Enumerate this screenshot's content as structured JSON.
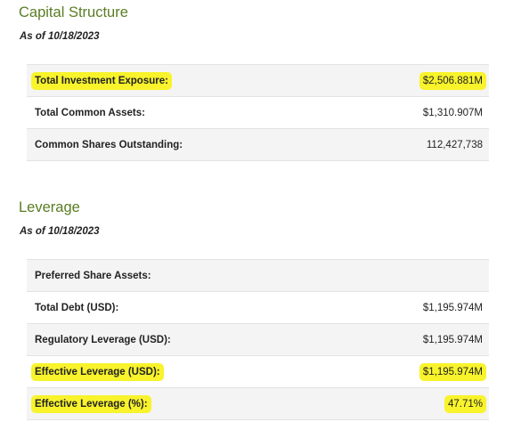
{
  "highlight_color": "#f8f32b",
  "title_color": "#5a7d23",
  "capital_structure": {
    "title": "Capital Structure",
    "as_of": "As of 10/18/2023",
    "rows": [
      {
        "label": "Total Investment Exposure:",
        "value": "$2,506.881M",
        "highlighted": true
      },
      {
        "label": "Total Common Assets:",
        "value": "$1,310.907M",
        "highlighted": false
      },
      {
        "label": "Common Shares Outstanding:",
        "value": "112,427,738",
        "highlighted": false
      }
    ]
  },
  "leverage": {
    "title": "Leverage",
    "as_of": "As of 10/18/2023",
    "rows": [
      {
        "label": "Preferred Share Assets:",
        "value": "",
        "highlighted": false
      },
      {
        "label": "Total Debt (USD):",
        "value": "$1,195.974M",
        "highlighted": false
      },
      {
        "label": "Regulatory Leverage (USD):",
        "value": "$1,195.974M",
        "highlighted": false
      },
      {
        "label": "Effective Leverage (USD):",
        "value": "$1,195.974M",
        "highlighted": true
      },
      {
        "label": "Effective Leverage (%):",
        "value": "47.71%",
        "highlighted": true
      }
    ]
  }
}
